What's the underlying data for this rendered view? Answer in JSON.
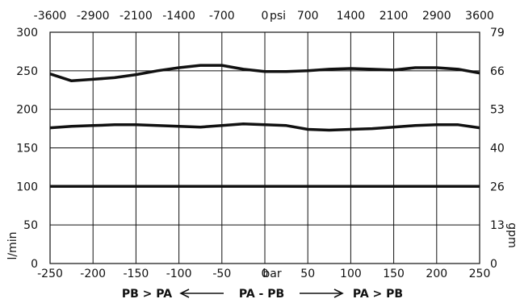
{
  "chart_data": {
    "type": "line",
    "x": [
      -250,
      -225,
      -200,
      -175,
      -150,
      -125,
      -100,
      -75,
      -50,
      -25,
      0,
      25,
      50,
      75,
      100,
      125,
      150,
      175,
      200,
      225,
      250
    ],
    "xlim": [
      -250,
      250
    ],
    "ylim": [
      0,
      300
    ],
    "x_ticks": [
      -250,
      -200,
      -150,
      -100,
      -50,
      0,
      50,
      100,
      150,
      200,
      250
    ],
    "x_tick_labels": [
      "-250",
      "-200",
      "-150",
      "-100",
      "-50",
      "0",
      "50",
      "100",
      "150",
      "200",
      "250"
    ],
    "x_unit_label": "bar",
    "y_ticks": [
      0,
      50,
      100,
      150,
      200,
      250,
      300
    ],
    "y_tick_labels": [
      "0",
      "50",
      "100",
      "150",
      "200",
      "250",
      "300"
    ],
    "ylabel": "l/min",
    "top_axis": {
      "unit": "psi",
      "tick_labels": [
        "-3600",
        "-2900",
        "-2100",
        "-1400",
        "-700",
        "0",
        "700",
        "1400",
        "2100",
        "2900",
        "3600"
      ]
    },
    "right_axis": {
      "unit": "gpm",
      "tick_labels": [
        "0",
        "13",
        "26",
        "40",
        "53",
        "66",
        "79"
      ]
    },
    "grid": true,
    "series": [
      {
        "values": [
          246,
          237,
          239,
          241,
          245,
          250,
          254,
          257,
          257,
          252,
          249,
          249,
          250,
          252,
          253,
          252,
          251,
          254,
          254,
          252,
          247
        ]
      },
      {
        "values": [
          176,
          178,
          179,
          180,
          180,
          179,
          178,
          177,
          179,
          181,
          180,
          179,
          174,
          173,
          174,
          175,
          177,
          179,
          180,
          180,
          176
        ]
      },
      {
        "values": [
          100,
          100,
          100,
          100,
          100,
          100,
          100,
          100,
          100,
          100,
          100,
          100,
          100,
          100,
          100,
          100,
          100,
          100,
          100,
          100,
          100
        ]
      }
    ],
    "direction_labels": {
      "left": "PB > PA",
      "center": "PA - PB",
      "right": "PA > PB"
    }
  }
}
